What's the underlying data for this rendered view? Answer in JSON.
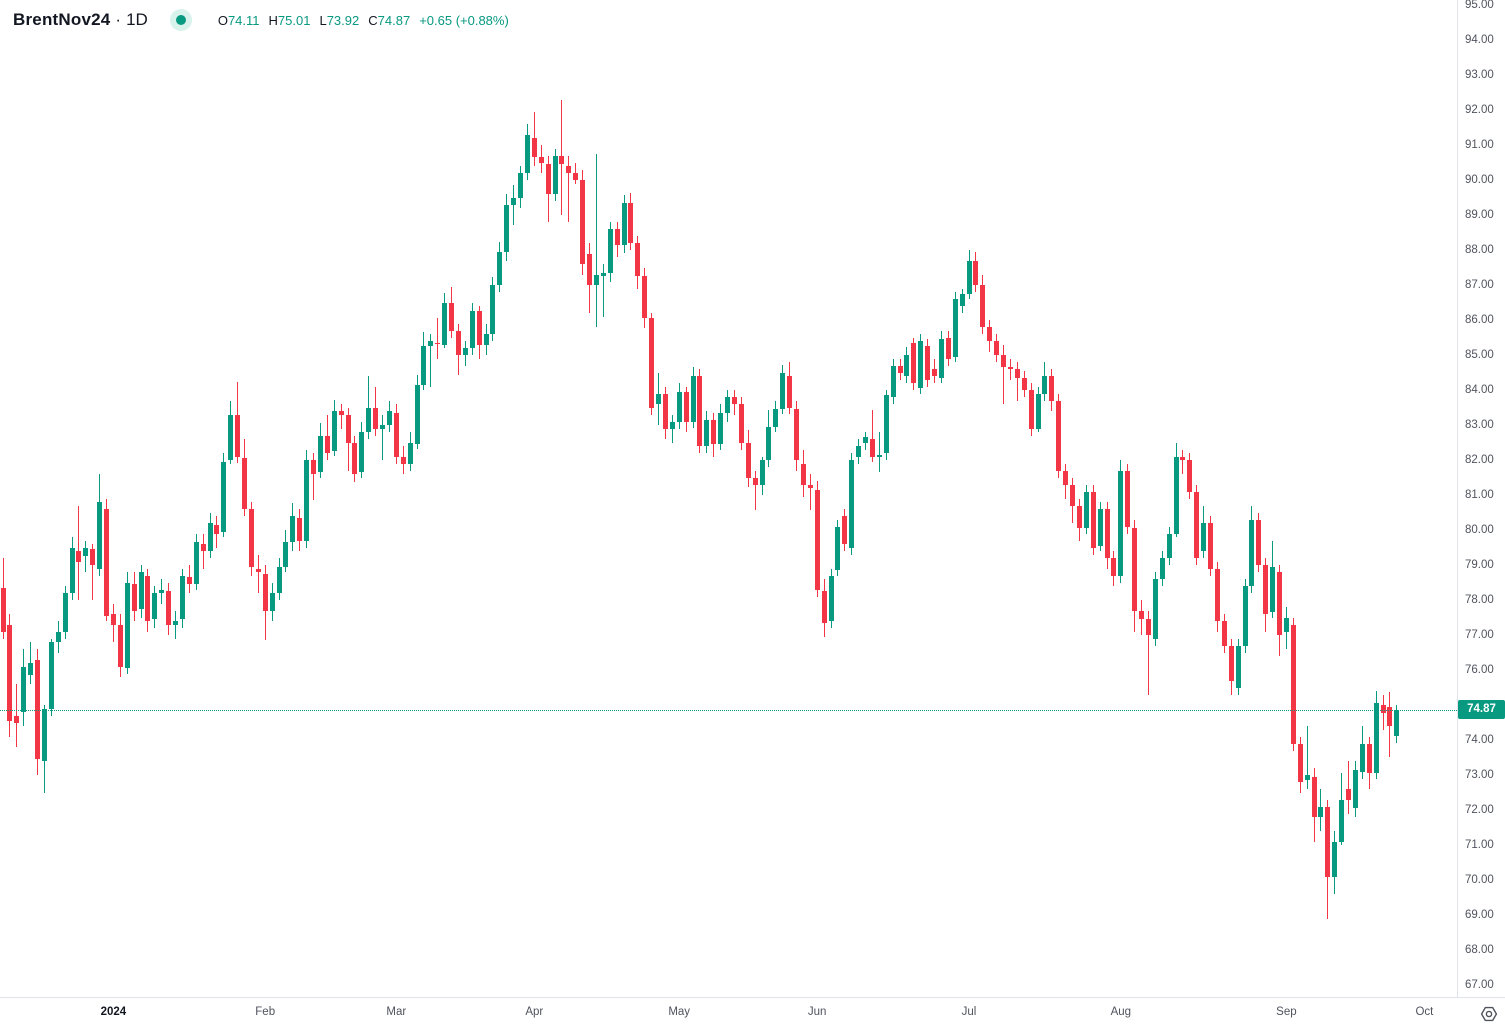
{
  "header": {
    "symbol": "BrentNov24",
    "separator": "·",
    "interval": "1D",
    "market_status": "open",
    "ohlc": {
      "open_label": "O",
      "open": "74.11",
      "high_label": "H",
      "high": "75.01",
      "low_label": "L",
      "low": "73.92",
      "close_label": "C",
      "close": "74.87",
      "change": "+0.65 (+0.88%)"
    }
  },
  "colors": {
    "up": "#089981",
    "down": "#F23645",
    "axis_text": "#50535e",
    "badge_bg": "#089981",
    "badge_text": "#ffffff",
    "separator_line": "#e0e3eb",
    "price_line": "#089981"
  },
  "price_axis": {
    "labels": [
      "95.00",
      "94.00",
      "93.00",
      "92.00",
      "91.00",
      "90.00",
      "89.00",
      "88.00",
      "87.00",
      "86.00",
      "85.00",
      "84.00",
      "83.00",
      "82.00",
      "81.00",
      "80.00",
      "79.00",
      "78.00",
      "77.00",
      "76.00",
      "74.00",
      "73.00",
      "72.00",
      "71.00",
      "70.00",
      "69.00",
      "68.00",
      "67.00"
    ],
    "last_price_label": "74.87"
  },
  "time_axis": {
    "ticks": [
      {
        "label": "2024",
        "index": 16,
        "year": true
      },
      {
        "label": "Feb",
        "index": 38
      },
      {
        "label": "Mar",
        "index": 57
      },
      {
        "label": "Apr",
        "index": 77
      },
      {
        "label": "May",
        "index": 98
      },
      {
        "label": "Jun",
        "index": 118
      },
      {
        "label": "Jul",
        "index": 140
      },
      {
        "label": "Aug",
        "index": 162
      },
      {
        "label": "Sep",
        "index": 186
      },
      {
        "label": "Oct",
        "index": 206
      }
    ]
  },
  "chart_data": {
    "type": "candlestick",
    "title": "BrentNov24 · 1D",
    "symbol": "BrentNov24",
    "interval": "1D",
    "legend_position": "top-left",
    "grid": false,
    "y_axis": {
      "min": 67,
      "max": 95,
      "tick_step": 1,
      "side": "right"
    },
    "x_axis": {
      "start": "Dec 2023",
      "end": "Oct 2024",
      "unit": "trading day"
    },
    "last_price": 74.87,
    "last_candle_ohlc": {
      "open": 74.11,
      "high": 75.01,
      "low": 73.92,
      "close": 74.87,
      "change": 0.65,
      "change_pct": 0.88
    },
    "price_line_style": "dotted",
    "candle_format": [
      "open",
      "high",
      "low",
      "close"
    ],
    "candles": [
      [
        78.35,
        79.2,
        76.9,
        77.1
      ],
      [
        77.3,
        77.6,
        74.1,
        74.55
      ],
      [
        74.7,
        75.6,
        73.8,
        74.5
      ],
      [
        74.8,
        76.6,
        74.4,
        76.1
      ],
      [
        75.85,
        76.8,
        75.6,
        76.2
      ],
      [
        76.3,
        76.6,
        73.0,
        73.45
      ],
      [
        73.4,
        75.0,
        72.5,
        74.9
      ],
      [
        74.9,
        76.9,
        74.7,
        76.8
      ],
      [
        76.8,
        77.4,
        76.5,
        77.1
      ],
      [
        77.1,
        78.4,
        76.9,
        78.2
      ],
      [
        78.2,
        79.8,
        78.0,
        79.5
      ],
      [
        79.4,
        80.7,
        78.0,
        79.1
      ],
      [
        79.25,
        79.7,
        78.8,
        79.5
      ],
      [
        79.45,
        79.6,
        78.0,
        79.0
      ],
      [
        78.9,
        81.6,
        78.7,
        80.8
      ],
      [
        80.6,
        80.9,
        77.4,
        77.55
      ],
      [
        77.6,
        77.9,
        76.8,
        77.3
      ],
      [
        77.3,
        77.6,
        75.8,
        76.1
      ],
      [
        76.05,
        78.8,
        75.9,
        78.5
      ],
      [
        78.45,
        78.8,
        77.4,
        77.7
      ],
      [
        77.75,
        79.0,
        77.5,
        78.8
      ],
      [
        78.7,
        78.9,
        77.1,
        77.4
      ],
      [
        77.45,
        78.4,
        77.2,
        78.2
      ],
      [
        78.2,
        78.6,
        77.9,
        78.3
      ],
      [
        78.25,
        78.5,
        77.0,
        77.3
      ],
      [
        77.3,
        77.7,
        76.9,
        77.4
      ],
      [
        77.45,
        78.9,
        77.2,
        78.7
      ],
      [
        78.65,
        79.0,
        78.2,
        78.45
      ],
      [
        78.45,
        79.9,
        78.3,
        79.65
      ],
      [
        79.6,
        79.9,
        78.9,
        79.4
      ],
      [
        79.4,
        80.5,
        79.2,
        80.2
      ],
      [
        80.15,
        80.4,
        79.5,
        79.9
      ],
      [
        79.95,
        82.2,
        79.8,
        81.95
      ],
      [
        82.0,
        83.7,
        81.9,
        83.3
      ],
      [
        83.3,
        84.24,
        81.9,
        82.1
      ],
      [
        82.05,
        82.6,
        80.4,
        80.6
      ],
      [
        80.6,
        80.8,
        78.7,
        78.95
      ],
      [
        78.9,
        79.3,
        78.2,
        78.8
      ],
      [
        78.75,
        79.0,
        76.86,
        77.7
      ],
      [
        77.7,
        78.5,
        77.4,
        78.2
      ],
      [
        78.2,
        79.2,
        78.0,
        78.95
      ],
      [
        78.95,
        80.0,
        78.8,
        79.65
      ],
      [
        79.65,
        80.76,
        79.4,
        80.4
      ],
      [
        80.35,
        80.6,
        79.4,
        79.7
      ],
      [
        79.7,
        82.3,
        79.5,
        82.0
      ],
      [
        82.0,
        82.2,
        80.86,
        81.6
      ],
      [
        81.65,
        83.05,
        81.5,
        82.7
      ],
      [
        82.7,
        83.3,
        82.0,
        82.2
      ],
      [
        82.25,
        83.71,
        82.1,
        83.4
      ],
      [
        83.4,
        83.6,
        82.9,
        83.3
      ],
      [
        83.3,
        83.5,
        81.7,
        82.5
      ],
      [
        82.5,
        82.7,
        81.38,
        81.6
      ],
      [
        81.65,
        83.1,
        81.5,
        82.8
      ],
      [
        82.8,
        84.4,
        82.6,
        83.5
      ],
      [
        83.5,
        84.1,
        82.7,
        82.9
      ],
      [
        82.9,
        83.3,
        82.0,
        83.0
      ],
      [
        83.0,
        83.7,
        82.8,
        83.4
      ],
      [
        83.35,
        83.6,
        81.9,
        82.1
      ],
      [
        82.1,
        82.4,
        81.6,
        81.9
      ],
      [
        81.9,
        82.8,
        81.7,
        82.5
      ],
      [
        82.45,
        84.43,
        82.3,
        84.15
      ],
      [
        84.15,
        85.67,
        84.0,
        85.25
      ],
      [
        85.25,
        85.6,
        84.1,
        85.4
      ],
      [
        85.35,
        86.05,
        84.9,
        85.3
      ],
      [
        85.3,
        86.76,
        85.2,
        86.5
      ],
      [
        86.5,
        86.95,
        85.5,
        85.7
      ],
      [
        85.7,
        85.9,
        84.43,
        85.0
      ],
      [
        85.0,
        85.4,
        84.7,
        85.2
      ],
      [
        85.2,
        86.48,
        85.0,
        86.25
      ],
      [
        86.25,
        86.4,
        84.9,
        85.3
      ],
      [
        85.3,
        85.9,
        85.0,
        85.6
      ],
      [
        85.6,
        87.24,
        85.4,
        87.0
      ],
      [
        87.0,
        88.24,
        86.8,
        87.95
      ],
      [
        87.95,
        89.6,
        87.7,
        89.3
      ],
      [
        89.3,
        89.86,
        88.7,
        89.5
      ],
      [
        89.5,
        90.4,
        89.2,
        90.2
      ],
      [
        90.2,
        91.6,
        90.0,
        91.3
      ],
      [
        91.2,
        91.95,
        90.4,
        90.65
      ],
      [
        90.65,
        91.0,
        90.2,
        90.5
      ],
      [
        90.45,
        90.7,
        88.8,
        89.6
      ],
      [
        89.6,
        90.9,
        89.4,
        90.7
      ],
      [
        90.7,
        92.29,
        89.0,
        90.45
      ],
      [
        90.4,
        90.7,
        88.8,
        90.2
      ],
      [
        90.2,
        90.5,
        89.9,
        90.0
      ],
      [
        90.0,
        90.3,
        87.3,
        87.6
      ],
      [
        87.9,
        88.2,
        86.2,
        87.0
      ],
      [
        87.0,
        90.75,
        85.8,
        87.3
      ],
      [
        87.25,
        87.6,
        86.1,
        87.35
      ],
      [
        87.35,
        88.8,
        87.1,
        88.6
      ],
      [
        88.6,
        88.8,
        87.8,
        88.15
      ],
      [
        88.15,
        89.57,
        87.9,
        89.35
      ],
      [
        89.35,
        89.62,
        88.0,
        88.2
      ],
      [
        88.2,
        88.4,
        86.9,
        87.25
      ],
      [
        87.25,
        87.5,
        85.76,
        86.05
      ],
      [
        86.05,
        86.2,
        83.3,
        83.5
      ],
      [
        83.6,
        84.5,
        83.0,
        83.9
      ],
      [
        83.9,
        84.1,
        82.6,
        82.9
      ],
      [
        82.9,
        83.3,
        82.5,
        83.1
      ],
      [
        83.1,
        84.2,
        82.9,
        83.95
      ],
      [
        83.95,
        84.1,
        82.8,
        83.1
      ],
      [
        83.1,
        84.67,
        82.9,
        84.4
      ],
      [
        84.4,
        84.6,
        82.2,
        82.4
      ],
      [
        82.4,
        83.4,
        82.2,
        83.15
      ],
      [
        83.15,
        83.35,
        82.1,
        82.45
      ],
      [
        82.45,
        83.6,
        82.3,
        83.35
      ],
      [
        83.35,
        84.0,
        83.1,
        83.8
      ],
      [
        83.8,
        84.0,
        83.3,
        83.6
      ],
      [
        83.6,
        83.8,
        82.3,
        82.5
      ],
      [
        82.5,
        82.86,
        81.24,
        81.5
      ],
      [
        81.5,
        81.7,
        80.57,
        81.3
      ],
      [
        81.3,
        82.1,
        81.0,
        82.0
      ],
      [
        82.0,
        83.43,
        81.8,
        82.95
      ],
      [
        82.95,
        83.7,
        82.8,
        83.45
      ],
      [
        83.45,
        84.71,
        83.3,
        84.5
      ],
      [
        84.4,
        84.81,
        83.3,
        83.5
      ],
      [
        83.45,
        83.7,
        81.7,
        82.0
      ],
      [
        81.9,
        82.3,
        80.95,
        81.3
      ],
      [
        81.3,
        81.6,
        80.57,
        81.2
      ],
      [
        81.15,
        81.4,
        78.1,
        78.3
      ],
      [
        78.25,
        78.6,
        76.95,
        77.35
      ],
      [
        77.4,
        78.9,
        77.2,
        78.7
      ],
      [
        78.85,
        80.3,
        78.7,
        80.1
      ],
      [
        80.4,
        80.6,
        79.4,
        79.6
      ],
      [
        79.5,
        82.2,
        79.3,
        82.0
      ],
      [
        82.1,
        82.6,
        81.9,
        82.4
      ],
      [
        82.5,
        82.8,
        82.3,
        82.65
      ],
      [
        82.6,
        83.43,
        81.95,
        82.1
      ],
      [
        82.1,
        82.81,
        81.67,
        82.15
      ],
      [
        82.2,
        84.0,
        82.0,
        83.85
      ],
      [
        83.8,
        84.9,
        83.6,
        84.7
      ],
      [
        84.7,
        84.9,
        84.3,
        84.5
      ],
      [
        84.4,
        85.24,
        84.2,
        85.0
      ],
      [
        85.35,
        85.5,
        84.0,
        84.2
      ],
      [
        84.05,
        85.6,
        83.9,
        85.4
      ],
      [
        85.25,
        85.45,
        84.1,
        84.3
      ],
      [
        84.6,
        84.9,
        84.2,
        84.4
      ],
      [
        84.35,
        85.7,
        84.2,
        85.45
      ],
      [
        85.5,
        85.7,
        84.7,
        84.9
      ],
      [
        84.95,
        86.8,
        84.8,
        86.6
      ],
      [
        86.4,
        86.9,
        86.2,
        86.75
      ],
      [
        86.75,
        88.0,
        86.6,
        87.7
      ],
      [
        87.7,
        87.95,
        86.8,
        87.0
      ],
      [
        87.0,
        87.3,
        85.6,
        85.8
      ],
      [
        85.8,
        86.0,
        85.1,
        85.4
      ],
      [
        85.4,
        85.6,
        84.8,
        85.0
      ],
      [
        85.0,
        85.3,
        83.6,
        84.65
      ],
      [
        84.65,
        84.9,
        84.3,
        84.6
      ],
      [
        84.6,
        84.8,
        83.7,
        84.35
      ],
      [
        84.35,
        84.55,
        83.8,
        84.0
      ],
      [
        84.0,
        84.2,
        82.7,
        82.9
      ],
      [
        82.9,
        84.1,
        82.8,
        83.9
      ],
      [
        83.9,
        84.8,
        83.7,
        84.4
      ],
      [
        84.4,
        84.6,
        83.4,
        83.7
      ],
      [
        83.7,
        83.9,
        81.5,
        81.7
      ],
      [
        81.7,
        81.9,
        80.9,
        81.3
      ],
      [
        81.3,
        81.5,
        80.2,
        80.7
      ],
      [
        80.7,
        80.9,
        79.7,
        80.05
      ],
      [
        80.05,
        81.3,
        79.9,
        81.1
      ],
      [
        81.1,
        81.3,
        79.3,
        79.5
      ],
      [
        79.55,
        80.8,
        79.4,
        80.6
      ],
      [
        80.6,
        80.8,
        78.9,
        79.2
      ],
      [
        79.2,
        79.4,
        78.4,
        78.7
      ],
      [
        78.7,
        82.0,
        78.5,
        81.7
      ],
      [
        81.7,
        81.9,
        79.9,
        80.1
      ],
      [
        80.05,
        80.3,
        77.1,
        77.7
      ],
      [
        77.7,
        78.0,
        77.0,
        77.45
      ],
      [
        77.45,
        77.7,
        75.3,
        77.0
      ],
      [
        76.9,
        78.8,
        76.7,
        78.6
      ],
      [
        78.6,
        79.4,
        78.4,
        79.2
      ],
      [
        79.2,
        80.1,
        79.0,
        79.9
      ],
      [
        79.9,
        82.5,
        79.8,
        82.1
      ],
      [
        82.1,
        82.3,
        81.6,
        82.0
      ],
      [
        82.0,
        82.2,
        80.9,
        81.1
      ],
      [
        81.1,
        81.3,
        79.0,
        79.2
      ],
      [
        79.4,
        80.7,
        79.2,
        80.2
      ],
      [
        80.2,
        80.4,
        78.7,
        78.9
      ],
      [
        78.9,
        79.1,
        77.1,
        77.4
      ],
      [
        77.4,
        77.6,
        76.5,
        76.7
      ],
      [
        76.7,
        76.9,
        75.3,
        75.7
      ],
      [
        75.5,
        76.9,
        75.3,
        76.7
      ],
      [
        76.7,
        78.6,
        76.5,
        78.4
      ],
      [
        78.4,
        80.7,
        78.2,
        80.3
      ],
      [
        80.3,
        80.5,
        78.8,
        79.0
      ],
      [
        79.0,
        79.2,
        77.1,
        77.6
      ],
      [
        77.65,
        79.7,
        77.5,
        78.95
      ],
      [
        78.8,
        79.0,
        76.4,
        77.0
      ],
      [
        77.1,
        77.8,
        76.6,
        77.5
      ],
      [
        77.3,
        77.5,
        73.7,
        73.9
      ],
      [
        73.9,
        74.1,
        72.5,
        72.8
      ],
      [
        72.85,
        74.4,
        72.6,
        73.0
      ],
      [
        72.95,
        73.2,
        71.1,
        71.8
      ],
      [
        71.8,
        72.6,
        71.4,
        72.1
      ],
      [
        72.1,
        72.3,
        68.9,
        70.1
      ],
      [
        70.1,
        71.4,
        69.6,
        71.1
      ],
      [
        71.1,
        73.05,
        71.0,
        72.3
      ],
      [
        72.6,
        73.4,
        71.9,
        72.3
      ],
      [
        72.05,
        73.4,
        71.8,
        73.15
      ],
      [
        73.1,
        74.4,
        72.9,
        73.9
      ],
      [
        73.9,
        74.1,
        72.6,
        73.05
      ],
      [
        73.05,
        75.4,
        72.9,
        75.05
      ],
      [
        75.0,
        75.3,
        74.3,
        74.76
      ],
      [
        74.95,
        75.38,
        73.5,
        74.4
      ],
      [
        74.11,
        75.01,
        73.92,
        74.87
      ]
    ]
  }
}
